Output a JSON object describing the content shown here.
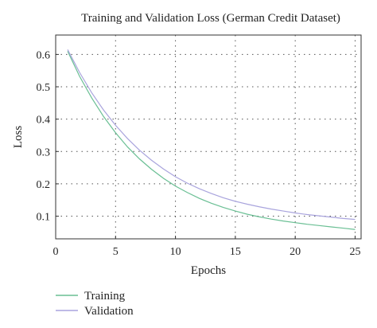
{
  "chart_data": {
    "type": "line",
    "title": "Training and Validation Loss (German Credit Dataset)",
    "xlabel": "Epochs",
    "ylabel": "Loss",
    "xlim": [
      0,
      25.5
    ],
    "ylim": [
      0.03,
      0.66
    ],
    "xticks": [
      0,
      5,
      10,
      15,
      20,
      25
    ],
    "yticks": [
      0.1,
      0.2,
      0.3,
      0.4,
      0.5,
      0.6
    ],
    "grid": true,
    "legend_position": "below-left",
    "series": [
      {
        "name": "Training",
        "color": "#6abf94",
        "x": [
          1,
          2,
          3,
          4,
          5,
          6,
          7,
          8,
          9,
          10,
          11,
          12,
          13,
          14,
          15,
          16,
          17,
          18,
          19,
          20,
          21,
          22,
          23,
          24,
          25
        ],
        "y": [
          0.61,
          0.532,
          0.466,
          0.408,
          0.358,
          0.314,
          0.277,
          0.245,
          0.217,
          0.193,
          0.173,
          0.155,
          0.14,
          0.127,
          0.116,
          0.106,
          0.098,
          0.091,
          0.085,
          0.08,
          0.075,
          0.071,
          0.067,
          0.063,
          0.059
        ]
      },
      {
        "name": "Validation",
        "color": "#a9a4dd",
        "x": [
          1,
          2,
          3,
          4,
          5,
          6,
          7,
          8,
          9,
          10,
          11,
          12,
          13,
          14,
          15,
          16,
          17,
          18,
          19,
          20,
          21,
          22,
          23,
          24,
          25
        ],
        "y": [
          0.615,
          0.544,
          0.482,
          0.428,
          0.381,
          0.34,
          0.304,
          0.273,
          0.246,
          0.222,
          0.202,
          0.185,
          0.17,
          0.157,
          0.146,
          0.137,
          0.129,
          0.122,
          0.116,
          0.11,
          0.105,
          0.101,
          0.097,
          0.093,
          0.09
        ]
      }
    ]
  }
}
